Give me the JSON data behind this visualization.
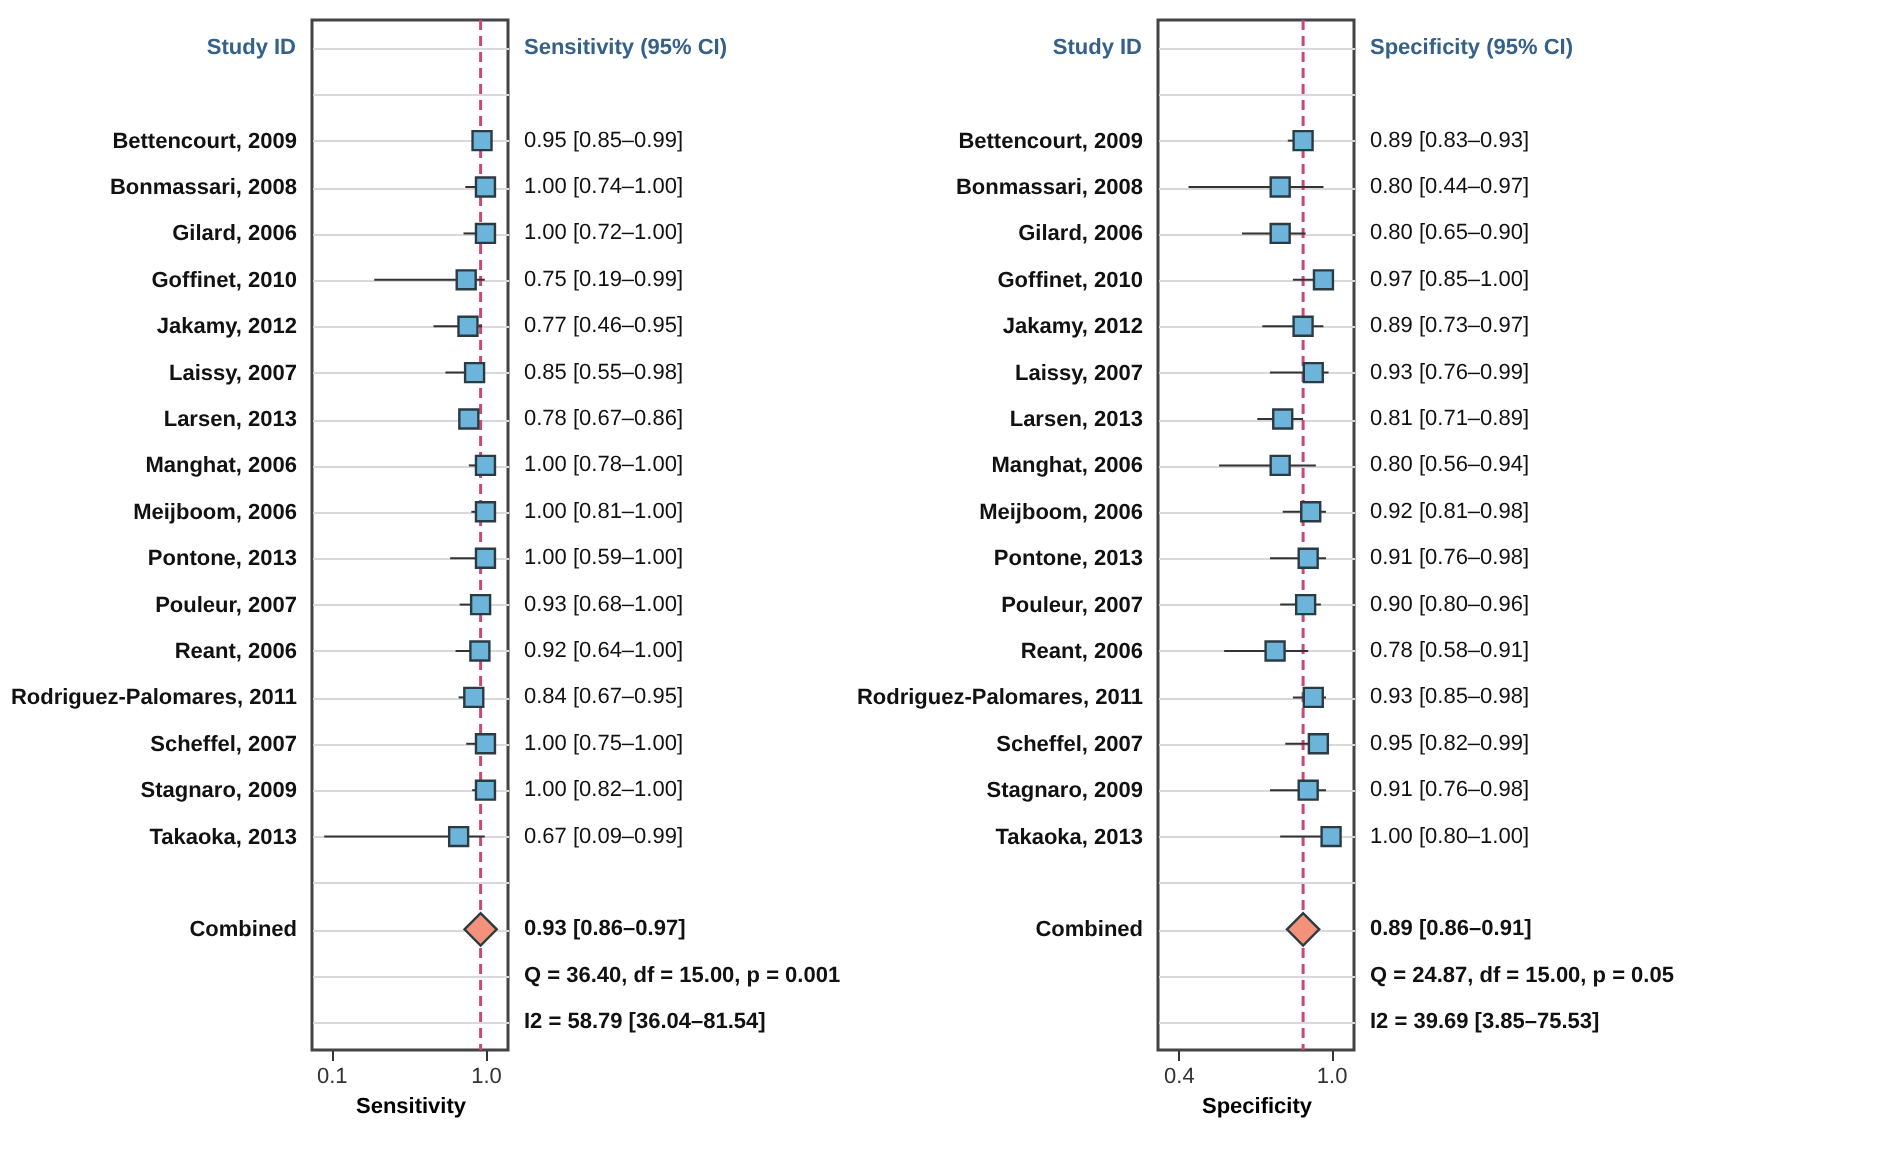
{
  "chart_data": [
    {
      "type": "scatter",
      "orientation": "horizontal",
      "ylabel": "Study ID",
      "xlabel": "Sensitivity",
      "log": "x",
      "grid": "y",
      "xlim": [
        0.075,
        1.4
      ],
      "xticks": [
        0.1,
        {
          "value": 1,
          "label": "1.0"
        }
      ],
      "categories": [
        null,
        null,
        "Bettencourt, 2009",
        "Bonmassari, 2008",
        "Gilard, 2006",
        "Goffinet, 2010",
        "Jakamy, 2012",
        "Laissy, 2007",
        "Larsen, 2013",
        "Manghat, 2006",
        "Meijboom, 2006",
        "Pontone, 2013",
        "Pouleur, 2007",
        "Reant, 2006",
        "Rodriguez-Palomares, 2011",
        "Scheffel, 2007",
        "Stagnaro, 2009",
        "Takaoka, 2013",
        null,
        "Combined",
        null,
        null
      ],
      "series": [
        {
          "marker": "square",
          "color": "#6cb4da",
          "values": [
            null,
            null,
            0.95,
            1.0,
            1.0,
            0.75,
            0.77,
            0.85,
            0.78,
            1.0,
            1.0,
            1.0,
            0.93,
            0.92,
            0.84,
            1.0,
            1.0,
            0.67,
            null,
            null,
            null,
            null
          ],
          "errors": [
            null,
            null,
            [
              0.85,
              0.99
            ],
            [
              0.74,
              1.0
            ],
            [
              0.72,
              1.0
            ],
            [
              0.19,
              0.99
            ],
            [
              0.46,
              0.95
            ],
            [
              0.55,
              0.98
            ],
            [
              0.67,
              0.86
            ],
            [
              0.78,
              1.0
            ],
            [
              0.81,
              1.0
            ],
            [
              0.59,
              1.0
            ],
            [
              0.68,
              1.0
            ],
            [
              0.64,
              1.0
            ],
            [
              0.67,
              0.95
            ],
            [
              0.75,
              1.0
            ],
            [
              0.82,
              1.0
            ],
            [
              0.09,
              0.99
            ],
            null,
            null,
            null,
            null
          ],
          "value_labels": [
            null,
            null,
            "0.95 [0.85–0.99]",
            "1.00 [0.74–1.00]",
            "1.00 [0.72–1.00]",
            "0.75 [0.19–0.99]",
            "0.77 [0.46–0.95]",
            "0.85 [0.55–0.98]",
            "0.78 [0.67–0.86]",
            "1.00 [0.78–1.00]",
            "1.00 [0.81–1.00]",
            "1.00 [0.59–1.00]",
            "0.93 [0.68–1.00]",
            "0.92 [0.64–1.00]",
            "0.84 [0.67–0.95]",
            "1.00 [0.75–1.00]",
            "1.00 [0.82–1.00]",
            "0.67 [0.09–0.99]",
            null,
            null,
            null,
            null
          ]
        },
        {
          "marker": "diamond",
          "color": "#f4917b",
          "values": [
            null,
            null,
            null,
            null,
            null,
            null,
            null,
            null,
            null,
            null,
            null,
            null,
            null,
            null,
            null,
            null,
            null,
            null,
            null,
            0.93,
            null,
            null
          ],
          "value_labels": [
            null,
            null,
            null,
            null,
            null,
            null,
            null,
            null,
            null,
            null,
            null,
            null,
            null,
            null,
            null,
            null,
            null,
            null,
            null,
            "0.93 [0.86–0.97]",
            null,
            null
          ]
        }
      ],
      "ref_lines": [
        {
          "axis": "x",
          "value": 0.93,
          "color": "#cc4a72",
          "line_style": "dashed"
        }
      ],
      "annotations": [
        "Sensitivity (95% CI)",
        "Q = 36.40, df = 15.00, p = 0.001",
        "I2 = 58.79 [36.04–81.54]"
      ]
    },
    {
      "type": "scatter",
      "orientation": "horizontal",
      "ylabel": "Study ID",
      "xlabel": "Specificity",
      "grid": "y",
      "xlim": [
        0.32,
        1.09
      ],
      "xticks": [
        0.4,
        {
          "value": 1,
          "label": "1.0"
        }
      ],
      "categories": [
        null,
        null,
        "Bettencourt, 2009",
        "Bonmassari, 2008",
        "Gilard, 2006",
        "Goffinet, 2010",
        "Jakamy, 2012",
        "Laissy, 2007",
        "Larsen, 2013",
        "Manghat, 2006",
        "Meijboom, 2006",
        "Pontone, 2013",
        "Pouleur, 2007",
        "Reant, 2006",
        "Rodriguez-Palomares, 2011",
        "Scheffel, 2007",
        "Stagnaro, 2009",
        "Takaoka, 2013",
        null,
        "Combined",
        null,
        null
      ],
      "series": [
        {
          "marker": "square",
          "color": "#6cb4da",
          "values": [
            null,
            null,
            0.89,
            0.8,
            0.8,
            0.97,
            0.89,
            0.93,
            0.81,
            0.8,
            0.92,
            0.91,
            0.9,
            0.78,
            0.93,
            0.95,
            0.91,
            1.0,
            null,
            null,
            null,
            null
          ],
          "errors": [
            null,
            null,
            [
              0.83,
              0.93
            ],
            [
              0.44,
              0.97
            ],
            [
              0.65,
              0.9
            ],
            [
              0.85,
              1.0
            ],
            [
              0.73,
              0.97
            ],
            [
              0.76,
              0.99
            ],
            [
              0.71,
              0.89
            ],
            [
              0.56,
              0.94
            ],
            [
              0.81,
              0.98
            ],
            [
              0.76,
              0.98
            ],
            [
              0.8,
              0.96
            ],
            [
              0.58,
              0.91
            ],
            [
              0.85,
              0.98
            ],
            [
              0.82,
              0.99
            ],
            [
              0.76,
              0.98
            ],
            [
              0.8,
              1.0
            ],
            null,
            null,
            null,
            null
          ],
          "value_labels": [
            null,
            null,
            "0.89 [0.83–0.93]",
            "0.80 [0.44–0.97]",
            "0.80 [0.65–0.90]",
            "0.97 [0.85–1.00]",
            "0.89 [0.73–0.97]",
            "0.93 [0.76–0.99]",
            "0.81 [0.71–0.89]",
            "0.80 [0.56–0.94]",
            "0.92 [0.81–0.98]",
            "0.91 [0.76–0.98]",
            "0.90 [0.80–0.96]",
            "0.78 [0.58–0.91]",
            "0.93 [0.85–0.98]",
            "0.95 [0.82–0.99]",
            "0.91 [0.76–0.98]",
            "1.00 [0.80–1.00]",
            null,
            null,
            null,
            null
          ]
        },
        {
          "marker": "diamond",
          "color": "#f4917b",
          "values": [
            null,
            null,
            null,
            null,
            null,
            null,
            null,
            null,
            null,
            null,
            null,
            null,
            null,
            null,
            null,
            null,
            null,
            null,
            null,
            0.89,
            null,
            null
          ],
          "value_labels": [
            null,
            null,
            null,
            null,
            null,
            null,
            null,
            null,
            null,
            null,
            null,
            null,
            null,
            null,
            null,
            null,
            null,
            null,
            null,
            "0.89 [0.86–0.91]",
            null,
            null
          ]
        }
      ],
      "ref_lines": [
        {
          "axis": "x",
          "value": 0.89,
          "color": "#cc4a72",
          "line_style": "dashed"
        }
      ],
      "annotations": [
        "Specificity (95% CI)",
        "Q = 24.87, df = 15.00, p = 0.05",
        "I2 = 39.69 [3.85–75.53]"
      ]
    }
  ]
}
